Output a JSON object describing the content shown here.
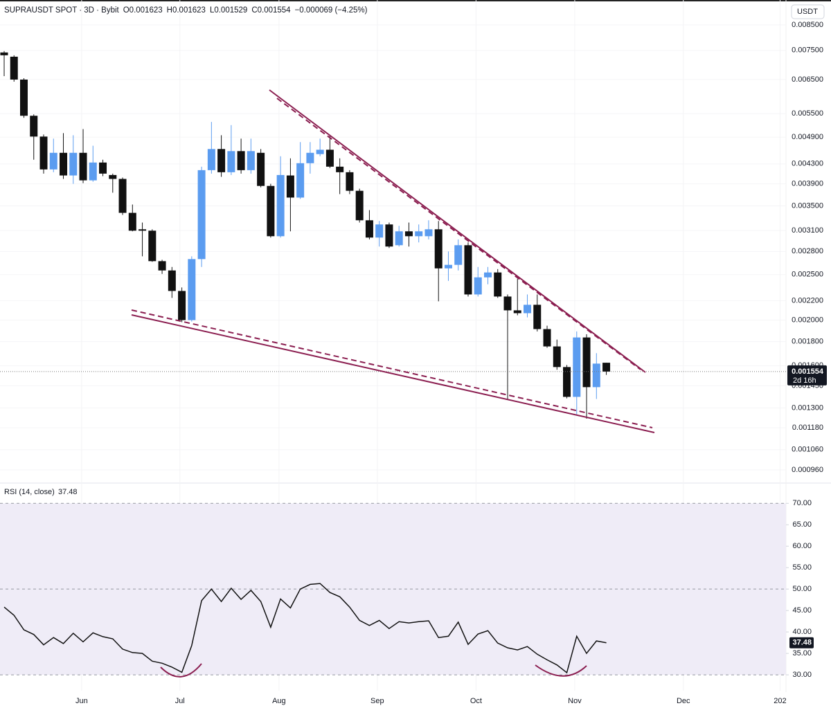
{
  "chart_data": [
    {
      "type": "candlestick",
      "title": "SUPRAUSDT SPOT · 3D · Bybit",
      "ohlc_labels": [
        "O0.001623",
        "H0.001623",
        "L0.001529",
        "C0.001554"
      ],
      "change_label": "−0.000069 (−4.25%)",
      "currency": "USDT",
      "countdown": "2d 16h",
      "log_scale": true,
      "grid": true,
      "up_color": "#5b9cf0",
      "down_color": "#111111",
      "open": [
        0.007424,
        0.007271,
        0.0065,
        0.005444,
        0.004916,
        0.004185,
        0.00454,
        0.004063,
        0.00454,
        0.003967,
        0.004329,
        0.004072,
        0.003995,
        0.003383,
        0.003121,
        0.0031,
        0.00267,
        0.002551,
        0.002307,
        0.002,
        0.002697,
        0.00417,
        0.004625,
        0.004128,
        0.004578,
        0.00417,
        0.00454,
        0.00386,
        0.003017,
        0.004063,
        0.003646,
        0.004315,
        0.004511,
        0.004609,
        0.004242,
        0.004128,
        0.003769,
        0.003262,
        0.002997,
        0.003196,
        0.002887,
        0.00309,
        0.003017,
        0.003017,
        0.003121,
        0.002577,
        0.002622,
        0.002887,
        0.002268,
        0.002466,
        0.002526,
        0.002245,
        0.002098,
        0.002069,
        0.002156,
        0.001914,
        0.001758,
        0.001589,
        0.001373,
        0.001837,
        0.00144,
        0.001623
      ],
      "high": [
        0.007475,
        0.007322,
        0.006544,
        0.005481,
        0.004966,
        0.004867,
        0.005,
        0.004949,
        0.0051,
        0.0047,
        0.004389,
        0.0041,
        0.004022,
        0.003524,
        0.003226,
        0.003121,
        0.002688,
        0.002595,
        0.002347,
        0.002734,
        0.004242,
        0.005282,
        0.004949,
        0.0052,
        0.004867,
        0.004867,
        0.004625,
        0.0039,
        0.004464,
        0.004419,
        0.004785,
        0.004785,
        0.004867,
        0.004933,
        0.004419,
        0.00417,
        0.003808,
        0.003429,
        0.003251,
        0.003226,
        0.003174,
        0.003226,
        0.003196,
        0.003262,
        0.003251,
        0.0028,
        0.00297,
        0.002927,
        0.002595,
        0.002595,
        0.002568,
        0.002268,
        0.002449,
        0.002268,
        0.002268,
        0.001946,
        0.001818,
        0.001605,
        0.001892,
        0.001866,
        0.001701,
        0.001623
      ],
      "low": [
        0.00661,
        0.006434,
        0.00539,
        0.004389,
        0.0041,
        0.004128,
        0.003995,
        0.0039,
        0.003913,
        0.00394,
        0.004049,
        0.003734,
        0.003348,
        0.00309,
        0.002734,
        0.002661,
        0.002508,
        0.00223,
        0.00198,
        0.001986,
        0.002595,
        0.0041,
        0.004036,
        0.004072,
        0.0041,
        0.0041,
        0.003834,
        0.002997,
        0.002997,
        0.00309,
        0.003622,
        0.0041,
        0.004464,
        0.004214,
        0.003708,
        0.003708,
        0.003226,
        0.00297,
        0.002868,
        0.002848,
        0.002868,
        0.002868,
        0.002927,
        0.00297,
        0.002193,
        0.002424,
        0.002551,
        0.002245,
        0.002245,
        0.002384,
        0.00223,
        0.001359,
        0.002048,
        0.002027,
        0.001892,
        0.001746,
        0.001568,
        0.001363,
        0.001261,
        0.001234,
        0.001359,
        0.001529
      ],
      "close": [
        0.007322,
        0.0065,
        0.005444,
        0.004916,
        0.004185,
        0.00454,
        0.004063,
        0.00454,
        0.003967,
        0.004329,
        0.0041,
        0.003995,
        0.003383,
        0.0031,
        0.0031,
        0.00267,
        0.002551,
        0.002307,
        0.002,
        0.002697,
        0.00417,
        0.004625,
        0.004128,
        0.004578,
        0.00417,
        0.004578,
        0.00386,
        0.003017,
        0.004072,
        0.003646,
        0.004315,
        0.00454,
        0.004609,
        0.004242,
        0.004128,
        0.003769,
        0.003262,
        0.002997,
        0.003196,
        0.002868,
        0.00309,
        0.003017,
        0.00309,
        0.003121,
        0.002577,
        0.002622,
        0.002887,
        0.002268,
        0.002466,
        0.002526,
        0.002245,
        0.002098,
        0.002069,
        0.002156,
        0.001914,
        0.001758,
        0.001589,
        0.001373,
        0.001837,
        0.00144,
        0.001616,
        0.001554
      ],
      "xlim": [
        -0.42,
        79.2
      ],
      "ylim": [
        0.000903,
        0.0096
      ],
      "yticks": [
        {
          "value": 0.0085,
          "label": "0.008500"
        },
        {
          "value": 0.0075,
          "label": "0.007500"
        },
        {
          "value": 0.0065,
          "label": "0.006500"
        },
        {
          "value": 0.0055,
          "label": "0.005500"
        },
        {
          "value": 0.0049,
          "label": "0.004900"
        },
        {
          "value": 0.0043,
          "label": "0.004300"
        },
        {
          "value": 0.0039,
          "label": "0.003900"
        },
        {
          "value": 0.0035,
          "label": "0.003500"
        },
        {
          "value": 0.0031,
          "label": "0.003100"
        },
        {
          "value": 0.0028,
          "label": "0.002800"
        },
        {
          "value": 0.0025,
          "label": "0.002500"
        },
        {
          "value": 0.0022,
          "label": "0.002200"
        },
        {
          "value": 0.002,
          "label": "0.002000"
        },
        {
          "value": 0.0018,
          "label": "0.001800"
        },
        {
          "value": 0.0016,
          "label": "0.001600"
        },
        {
          "value": 0.00145,
          "label": "0.001450"
        },
        {
          "value": 0.0013,
          "label": "0.001300"
        },
        {
          "value": 0.00118,
          "label": "0.001180"
        },
        {
          "value": 0.00106,
          "label": "0.001060"
        },
        {
          "value": 0.00096,
          "label": "0.000960"
        }
      ]
    },
    {
      "type": "line",
      "title": "RSI (14, close)",
      "color": "#111111",
      "band": [
        30,
        70
      ],
      "band_color": "#efecf7",
      "level_lines": [
        70,
        50,
        30
      ],
      "values": [
        45.8,
        43.9,
        40.5,
        39.4,
        37.0,
        38.7,
        37.3,
        39.7,
        37.7,
        39.8,
        38.9,
        38.4,
        36.0,
        35.2,
        35.0,
        33.2,
        32.7,
        31.8,
        30.6,
        36.8,
        47.3,
        50.0,
        47.1,
        50.2,
        47.6,
        49.7,
        47.1,
        41.1,
        47.7,
        45.6,
        50.0,
        51.1,
        51.3,
        49.2,
        48.2,
        45.8,
        42.7,
        41.5,
        42.7,
        40.8,
        42.4,
        42.1,
        42.4,
        42.6,
        38.7,
        39.0,
        42.3,
        37.1,
        39.5,
        40.3,
        37.4,
        36.3,
        35.8,
        36.6,
        34.8,
        33.5,
        32.3,
        30.5,
        39.0,
        35.0,
        37.9,
        37.48
      ],
      "xlim": [
        -0.42,
        79.2
      ],
      "xticks": [
        {
          "value": 7.85,
          "label": "Jun"
        },
        {
          "value": 17.8,
          "label": "Jul"
        },
        {
          "value": 27.84,
          "label": "Aug"
        },
        {
          "value": 37.8,
          "label": "Sep"
        },
        {
          "value": 47.8,
          "label": "Oct"
        },
        {
          "value": 57.8,
          "label": "Nov"
        },
        {
          "value": 68.8,
          "label": "Dec"
        },
        {
          "value": 78.6,
          "label": "202"
        }
      ],
      "ylim": [
        26.3,
        74.4
      ],
      "yticks": [
        {
          "value": 70,
          "label": "70.00"
        },
        {
          "value": 65,
          "label": "65.00"
        },
        {
          "value": 60,
          "label": "60.00"
        },
        {
          "value": 55,
          "label": "55.00"
        },
        {
          "value": 50,
          "label": "50.00"
        },
        {
          "value": 45,
          "label": "45.00"
        },
        {
          "value": 40,
          "label": "40.00"
        },
        {
          "value": 35,
          "label": "35.00"
        },
        {
          "value": 30,
          "label": "30.00"
        }
      ]
    }
  ]
}
